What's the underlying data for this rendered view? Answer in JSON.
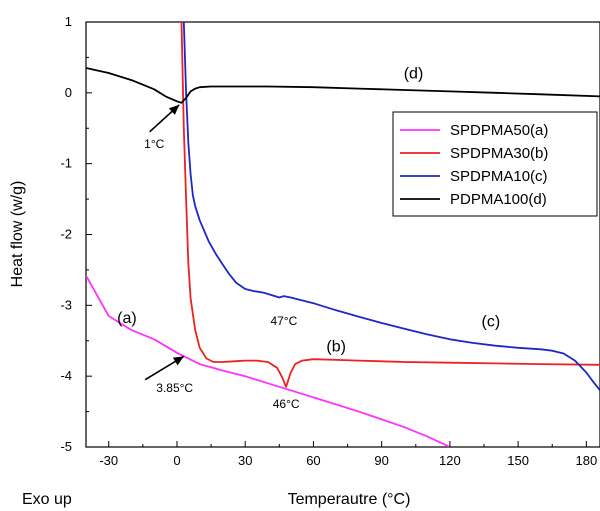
{
  "chart_data": {
    "type": "line",
    "xlabel": "Temperautre (°C)",
    "ylabel": "Heat flow (w/g)",
    "corner_label": "Exo up",
    "xlim": [
      -40,
      186
    ],
    "ylim": [
      -5,
      1
    ],
    "xticks": [
      -30,
      0,
      30,
      60,
      90,
      120,
      150,
      180
    ],
    "yticks": [
      -5,
      -4,
      -3,
      -2,
      -1,
      0,
      1
    ],
    "legend": {
      "position": "right",
      "entries": [
        "SPDPMA50(a)",
        "SPDPMA30(b)",
        "SPDPMA10(c)",
        "PDPMA100(d)"
      ]
    },
    "series": [
      {
        "name": "SPDPMA50(a)",
        "color": "#ff33ff",
        "x": [
          -40,
          -30,
          -20,
          -10,
          0,
          10,
          20,
          30,
          40,
          50,
          60,
          70,
          80,
          90,
          100,
          110,
          120
        ],
        "y": [
          -2.58,
          -3.15,
          -3.35,
          -3.48,
          -3.67,
          -3.83,
          -3.92,
          -4.0,
          -4.1,
          -4.2,
          -4.3,
          -4.4,
          -4.5,
          -4.61,
          -4.72,
          -4.85,
          -5.0
        ]
      },
      {
        "name": "SPDPMA30(b)",
        "color": "#ee2020",
        "x": [
          2,
          3,
          4,
          5,
          6,
          8,
          10,
          13,
          16,
          20,
          25,
          30,
          35,
          40,
          44,
          46,
          48,
          50,
          52,
          55,
          60,
          70,
          80,
          90,
          100,
          120,
          140,
          160,
          186
        ],
        "y": [
          1.0,
          -0.5,
          -1.5,
          -2.4,
          -2.9,
          -3.35,
          -3.6,
          -3.75,
          -3.8,
          -3.8,
          -3.79,
          -3.78,
          -3.78,
          -3.8,
          -3.88,
          -4.0,
          -4.15,
          -3.95,
          -3.83,
          -3.78,
          -3.76,
          -3.77,
          -3.78,
          -3.79,
          -3.8,
          -3.81,
          -3.82,
          -3.83,
          -3.84
        ]
      },
      {
        "name": "SPDPMA10(c)",
        "color": "#1c28c8",
        "x": [
          3,
          4,
          5,
          6,
          7,
          8,
          10,
          12,
          14,
          17,
          20,
          23,
          26,
          30,
          34,
          38,
          42,
          45,
          47,
          50,
          55,
          60,
          70,
          80,
          90,
          100,
          110,
          120,
          130,
          140,
          150,
          160,
          165,
          170,
          175,
          180,
          183,
          186
        ],
        "y": [
          1.0,
          0.0,
          -0.7,
          -1.15,
          -1.45,
          -1.6,
          -1.8,
          -1.95,
          -2.1,
          -2.27,
          -2.42,
          -2.56,
          -2.68,
          -2.77,
          -2.8,
          -2.82,
          -2.86,
          -2.89,
          -2.87,
          -2.89,
          -2.93,
          -2.97,
          -3.07,
          -3.16,
          -3.25,
          -3.33,
          -3.41,
          -3.48,
          -3.53,
          -3.57,
          -3.6,
          -3.62,
          -3.64,
          -3.68,
          -3.78,
          -3.95,
          -4.08,
          -4.2
        ]
      },
      {
        "name": "PDPMA100(d)",
        "color": "#000000",
        "x": [
          -40,
          -30,
          -20,
          -10,
          -5,
          0,
          2,
          4,
          6,
          8,
          10,
          15,
          20,
          30,
          40,
          60,
          80,
          100,
          120,
          140,
          160,
          186
        ],
        "y": [
          0.35,
          0.28,
          0.18,
          0.05,
          -0.05,
          -0.12,
          -0.14,
          -0.07,
          0.02,
          0.06,
          0.08,
          0.09,
          0.09,
          0.09,
          0.09,
          0.08,
          0.06,
          0.04,
          0.02,
          0.0,
          -0.02,
          -0.05
        ]
      }
    ],
    "annotations": [
      {
        "text": "(a)",
        "x": -22,
        "y": -3.25
      },
      {
        "text": "(b)",
        "x": 70,
        "y": -3.65
      },
      {
        "text": "(c)",
        "x": 138,
        "y": -3.3
      },
      {
        "text": "(d)",
        "x": 104,
        "y": 0.2
      },
      {
        "text": "1°C",
        "x": -10,
        "y": -0.78
      },
      {
        "text": "47°C",
        "x": 47,
        "y": -3.28
      },
      {
        "text": "46°C",
        "x": 48,
        "y": -4.45
      },
      {
        "text": "3.85°C",
        "x": -1,
        "y": -4.22
      }
    ],
    "arrows": [
      {
        "from": [
          -12,
          -0.55
        ],
        "to": [
          1,
          -0.17
        ]
      },
      {
        "from": [
          -14,
          -4.05
        ],
        "to": [
          3,
          -3.72
        ]
      }
    ]
  }
}
